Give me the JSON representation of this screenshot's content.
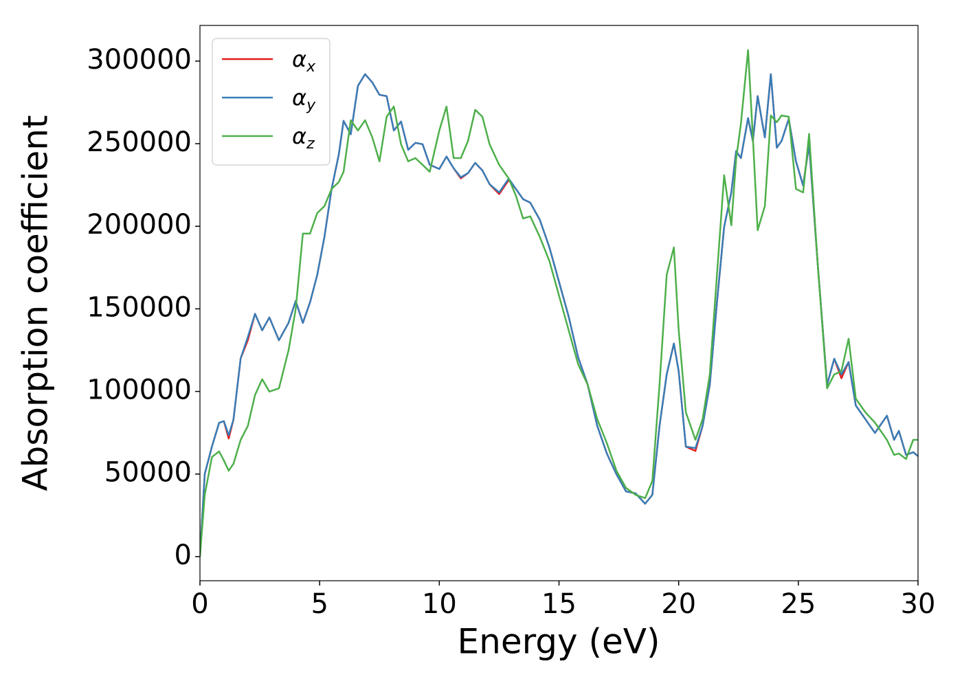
{
  "chart_data": {
    "type": "line",
    "x_label": "Energy (eV)",
    "y_label": "Absorption coefficient",
    "xlim": [
      0,
      30
    ],
    "ylim": [
      -14600,
      321600
    ],
    "xticks": [
      0,
      5,
      10,
      15,
      20,
      25,
      30
    ],
    "yticks": [
      0,
      50000,
      100000,
      150000,
      200000,
      250000,
      300000
    ],
    "legend": "upper left",
    "grid": false,
    "x": [
      0,
      0.2,
      0.5,
      0.8,
      1.0,
      1.2,
      1.4,
      1.7,
      2.0,
      2.3,
      2.6,
      2.9,
      3.3,
      3.7,
      4.0,
      4.3,
      4.6,
      4.9,
      5.2,
      5.5,
      5.8,
      6.0,
      6.3,
      6.6,
      6.9,
      7.2,
      7.5,
      7.8,
      8.1,
      8.4,
      8.7,
      9.0,
      9.3,
      9.6,
      10.0,
      10.3,
      10.6,
      10.9,
      11.2,
      11.5,
      11.8,
      12.1,
      12.5,
      12.9,
      13.2,
      13.5,
      13.8,
      14.2,
      14.6,
      15.0,
      15.4,
      15.8,
      16.2,
      16.6,
      17.0,
      17.4,
      17.8,
      18.2,
      18.6,
      18.9,
      19.2,
      19.5,
      19.8,
      20.0,
      20.3,
      20.7,
      21.0,
      21.3,
      21.6,
      21.9,
      22.2,
      22.4,
      22.6,
      22.9,
      23.1,
      23.3,
      23.6,
      23.85,
      24.1,
      24.3,
      24.6,
      24.9,
      25.2,
      25.45,
      25.8,
      26.2,
      26.5,
      26.8,
      27.1,
      27.4,
      27.8,
      28.2,
      28.5,
      28.7,
      29.0,
      29.2,
      29.5,
      29.8,
      30.0
    ],
    "series": [
      {
        "name": "αx",
        "color": "#e41a1c",
        "values": [
          0,
          50000,
          66600,
          81000,
          82000,
          71500,
          83000,
          120000,
          131000,
          147000,
          137000,
          144800,
          131000,
          141500,
          154800,
          141500,
          154000,
          170600,
          193500,
          222600,
          243400,
          263800,
          255700,
          285000,
          292100,
          287100,
          279600,
          278800,
          258000,
          263400,
          246300,
          250500,
          249700,
          237200,
          234700,
          242200,
          235100,
          229000,
          232200,
          238400,
          233800,
          225500,
          219500,
          228000,
          222600,
          216400,
          214300,
          203900,
          187200,
          166400,
          145600,
          120700,
          104000,
          79100,
          62400,
          49900,
          39500,
          38300,
          32000,
          37400,
          79100,
          110300,
          129000,
          112300,
          66600,
          64000,
          79100,
          104000,
          154000,
          199700,
          220500,
          245500,
          241300,
          265500,
          251700,
          278800,
          253800,
          292100,
          247600,
          251700,
          265000,
          239300,
          224700,
          249700,
          178900,
          104000,
          119800,
          108000,
          117800,
          91500,
          83200,
          74900,
          81100,
          85300,
          70700,
          76100,
          61600,
          63200,
          60800
        ]
      },
      {
        "name": "αy",
        "color": "#377eb8",
        "values": [
          0,
          50000,
          66600,
          81000,
          82000,
          73500,
          83000,
          120000,
          133000,
          147000,
          137000,
          144800,
          131000,
          141500,
          154800,
          141500,
          154000,
          170600,
          193500,
          222600,
          243400,
          263800,
          255700,
          285000,
          292100,
          287100,
          279600,
          278800,
          258000,
          263400,
          246300,
          250500,
          249700,
          237200,
          234700,
          242200,
          235100,
          229700,
          232200,
          238400,
          233800,
          225500,
          220500,
          228900,
          222600,
          216400,
          214300,
          203900,
          187200,
          166400,
          145600,
          120700,
          104000,
          79100,
          62400,
          49900,
          39500,
          38300,
          32000,
          37400,
          79100,
          110300,
          129000,
          112300,
          66600,
          65700,
          79100,
          104000,
          154000,
          199700,
          220500,
          245500,
          241300,
          265500,
          251700,
          278800,
          253800,
          292100,
          247600,
          251700,
          265000,
          239300,
          224700,
          249700,
          178900,
          104000,
          119800,
          110300,
          117800,
          91500,
          83200,
          74900,
          81100,
          85300,
          70700,
          76100,
          61600,
          63200,
          60800
        ]
      },
      {
        "name": "αz",
        "color": "#4daf4a",
        "values": [
          0,
          37400,
          60300,
          63700,
          58200,
          52000,
          56200,
          70700,
          79100,
          97800,
          107400,
          99900,
          101900,
          124800,
          149800,
          195600,
          195600,
          208000,
          212200,
          222600,
          226800,
          233000,
          264200,
          258000,
          264200,
          253800,
          239300,
          266300,
          272500,
          249700,
          239300,
          241300,
          237200,
          233000,
          258000,
          272500,
          241300,
          241300,
          251700,
          270500,
          266300,
          249700,
          237200,
          228900,
          218500,
          204700,
          206000,
          193500,
          178900,
          158100,
          137300,
          116500,
          104000,
          83200,
          68700,
          52000,
          41600,
          37400,
          35400,
          45800,
          104000,
          170600,
          187200,
          137300,
          87400,
          70700,
          83200,
          110300,
          170600,
          230900,
          200600,
          240500,
          262100,
          306700,
          253800,
          197600,
          212200,
          267100,
          263000,
          267100,
          266300,
          222600,
          220500,
          255900,
          178900,
          101900,
          110300,
          112300,
          131900,
          95700,
          87400,
          81100,
          74900,
          70700,
          61600,
          62400,
          59100,
          70700,
          70700
        ]
      }
    ]
  }
}
